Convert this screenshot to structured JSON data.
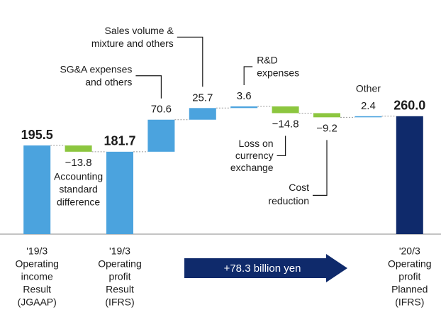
{
  "chart_data": {
    "type": "waterfall",
    "categories": [
      [
        "'19/3",
        "Operating",
        "income",
        "Result",
        "(JGAAP)"
      ],
      null,
      [
        "'19/3",
        "Operating",
        "profit",
        "Result",
        "(IFRS)"
      ],
      null,
      null,
      null,
      null,
      null,
      null,
      [
        "'20/3",
        "Operating",
        "profit",
        "Planned",
        "(IFRS)"
      ]
    ],
    "measures": [
      "total",
      "relative",
      "total",
      "relative",
      "relative",
      "relative",
      "relative",
      "relative",
      "relative",
      "total"
    ],
    "values": [
      195.5,
      -13.8,
      181.7,
      70.6,
      25.7,
      3.6,
      -14.8,
      -9.2,
      2.4,
      260.0
    ],
    "value_labels": [
      "195.5",
      "−13.8",
      "181.7",
      "70.6",
      "25.7",
      "3.6",
      "−14.8",
      "−9.2",
      "2.4",
      "260.0"
    ],
    "annotations": [
      null,
      [
        "Accounting",
        "standard",
        "difference"
      ],
      null,
      [
        "SG&A expenses",
        "and others"
      ],
      [
        "Sales volume &",
        "mixture and others"
      ],
      [
        "R&D",
        "expenses"
      ],
      [
        "Loss on",
        "currency",
        "exchange"
      ],
      [
        "Cost",
        "reduction"
      ],
      [
        "Other"
      ],
      null
    ],
    "colors": [
      "#4ba3de",
      "#8cc63f",
      "#4ba3de",
      "#4ba3de",
      "#4ba3de",
      "#4ba3de",
      "#8cc63f",
      "#8cc63f",
      "#4ba3de",
      "#0f2a6b"
    ],
    "arrow_label": "+78.3 billion yen"
  }
}
